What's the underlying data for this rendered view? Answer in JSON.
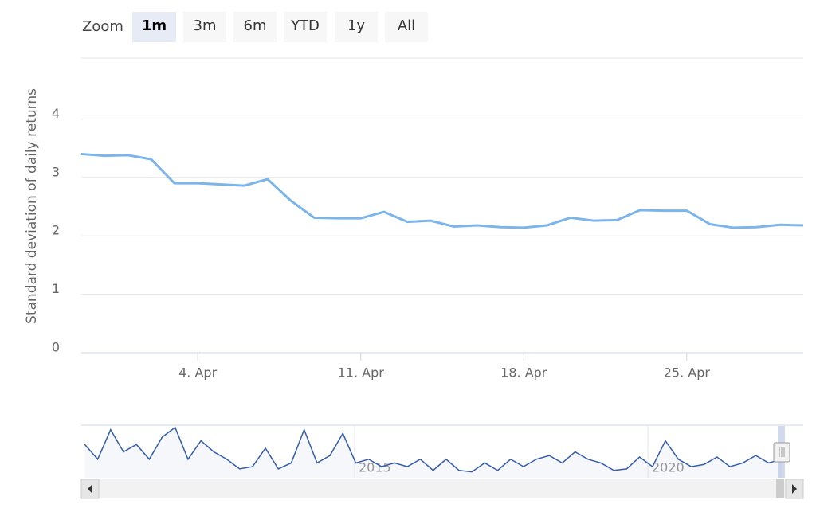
{
  "chart_data": {
    "type": "line",
    "zoom_label": "Zoom",
    "zoom_buttons": [
      "1m",
      "3m",
      "6m",
      "YTD",
      "1y",
      "All"
    ],
    "selected_zoom": "1m",
    "y_axis_title": "Standard deviation of daily returns",
    "x": [
      "30. Mar",
      "31. Mar",
      "1. Apr",
      "2. Apr",
      "3. Apr",
      "4. Apr",
      "5. Apr",
      "6. Apr",
      "7. Apr",
      "8. Apr",
      "9. Apr",
      "10. Apr",
      "11. Apr",
      "12. Apr",
      "13. Apr",
      "14. Apr",
      "15. Apr",
      "16. Apr",
      "17. Apr",
      "18. Apr",
      "19. Apr",
      "20. Apr",
      "21. Apr",
      "22. Apr",
      "23. Apr",
      "24. Apr",
      "25. Apr",
      "26. Apr",
      "27. Apr",
      "28. Apr",
      "29. Apr",
      "30. Apr"
    ],
    "series": [
      {
        "name": "Standard deviation of daily returns",
        "color": "#7cb5ec",
        "values": [
          3.4,
          3.37,
          3.38,
          3.31,
          2.9,
          2.9,
          2.88,
          2.86,
          2.97,
          2.6,
          2.31,
          2.3,
          2.3,
          2.41,
          2.24,
          2.26,
          2.16,
          2.18,
          2.15,
          2.14,
          2.18,
          2.31,
          2.26,
          2.27,
          2.44,
          2.43,
          2.43,
          2.2,
          2.14,
          2.15,
          2.19,
          2.18
        ]
      }
    ],
    "xticks": [
      "4. Apr",
      "11. Apr",
      "18. Apr",
      "25. Apr"
    ],
    "ylim": [
      0,
      5
    ],
    "yticks": [
      0,
      1,
      2,
      3,
      4
    ],
    "grid": true,
    "navigator": {
      "type": "area",
      "color": "#335cad",
      "x": [
        2010.4,
        2010.62,
        2010.84,
        2011.06,
        2011.28,
        2011.5,
        2011.72,
        2011.94,
        2012.16,
        2012.38,
        2012.6,
        2012.82,
        2013.04,
        2013.26,
        2013.48,
        2013.7,
        2013.92,
        2014.14,
        2014.36,
        2014.58,
        2014.8,
        2015.02,
        2015.24,
        2015.46,
        2015.68,
        2015.9,
        2016.12,
        2016.34,
        2016.56,
        2016.78,
        2017.0,
        2017.22,
        2017.44,
        2017.66,
        2017.88,
        2018.1,
        2018.32,
        2018.54,
        2018.76,
        2018.98,
        2019.2,
        2019.42,
        2019.64,
        2019.86,
        2020.08,
        2020.3,
        2020.52,
        2020.74,
        2020.96,
        2021.18,
        2021.4,
        2021.62,
        2021.84,
        2022.06,
        2022.28
      ],
      "values": [
        4.5,
        2.5,
        6.5,
        3.5,
        4.5,
        2.5,
        5.5,
        6.8,
        2.5,
        5.0,
        3.5,
        2.5,
        1.2,
        1.5,
        4.0,
        1.2,
        2.0,
        6.5,
        2.0,
        3.0,
        6.0,
        2.0,
        2.5,
        1.5,
        2.0,
        1.5,
        2.5,
        1.0,
        2.5,
        1.0,
        0.8,
        2.0,
        1.0,
        2.5,
        1.5,
        2.5,
        3.0,
        2.0,
        3.5,
        2.5,
        2.0,
        1.0,
        1.2,
        2.8,
        1.5,
        5.0,
        2.5,
        1.5,
        1.8,
        2.8,
        1.5,
        2.0,
        3.0,
        2.0,
        2.5
      ],
      "xlim": [
        2010.34,
        2022.65
      ],
      "ylim": [
        0,
        7
      ],
      "xticks": [
        2015,
        2020
      ]
    }
  }
}
